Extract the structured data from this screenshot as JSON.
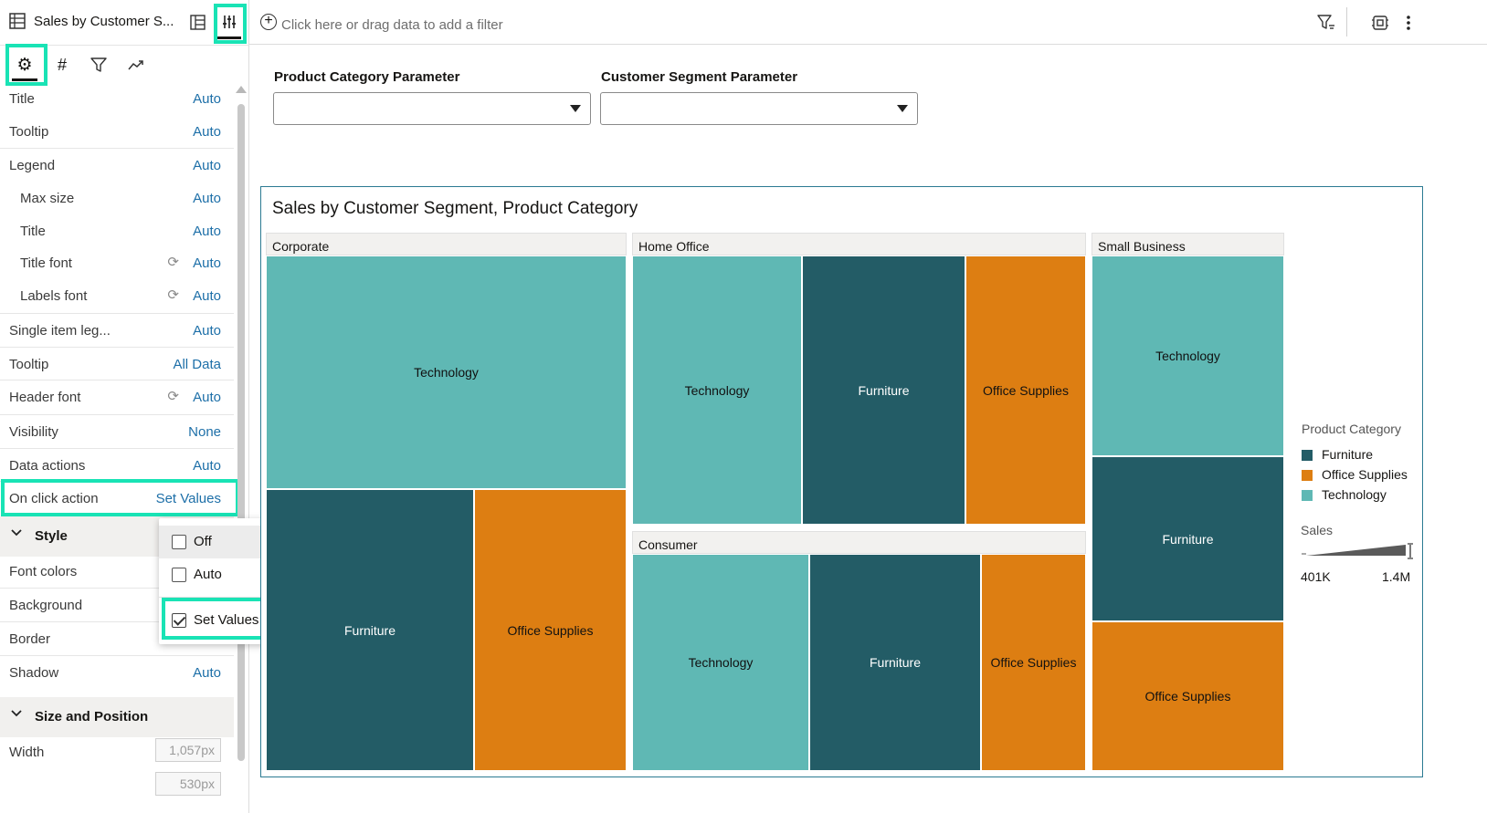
{
  "app": {
    "canvas_title": "Sales by Customer S..."
  },
  "filterbar": {
    "placeholder": "Click here or drag data to add a filter"
  },
  "properties": [
    {
      "label": "Title",
      "value": "Auto",
      "indent": false,
      "reset": false
    },
    {
      "label": "Tooltip",
      "value": "Auto",
      "indent": false,
      "reset": false
    },
    {
      "label": "Legend",
      "value": "Auto",
      "indent": false,
      "reset": false
    },
    {
      "label": "Max size",
      "value": "Auto",
      "indent": true,
      "reset": false
    },
    {
      "label": "Title",
      "value": "Auto",
      "indent": true,
      "reset": false
    },
    {
      "label": "Title font",
      "value": "Auto",
      "indent": true,
      "reset": true
    },
    {
      "label": "Labels font",
      "value": "Auto",
      "indent": true,
      "reset": true
    },
    {
      "label": "Single item leg...",
      "value": "Auto",
      "indent": false,
      "reset": false
    },
    {
      "label": "Tooltip",
      "value": "All Data",
      "indent": false,
      "reset": false
    },
    {
      "label": "Header font",
      "value": "Auto",
      "indent": false,
      "reset": true
    },
    {
      "label": "Visibility",
      "value": "None",
      "indent": false,
      "reset": false
    },
    {
      "label": "Data actions",
      "value": "Auto",
      "indent": false,
      "reset": false
    },
    {
      "label": "On click action",
      "value": "Set Values",
      "indent": false,
      "reset": false
    }
  ],
  "style_section": {
    "title": "Style",
    "rows": [
      {
        "label": "Font colors",
        "value": ""
      },
      {
        "label": "Background",
        "value": ""
      },
      {
        "label": "Border",
        "value": ""
      },
      {
        "label": "Shadow",
        "value": "Auto"
      }
    ]
  },
  "size_section": {
    "title": "Size and Position",
    "width_label": "Width",
    "width_value": "1,057px",
    "height_value": "530px"
  },
  "dropdown": {
    "options": [
      {
        "label": "Off",
        "checked": false
      },
      {
        "label": "Auto",
        "checked": false
      },
      {
        "label": "Set Values",
        "checked": true
      }
    ]
  },
  "parameters": [
    {
      "label": "Product Category Parameter",
      "value": ""
    },
    {
      "label": "Customer Segment Parameter",
      "value": ""
    }
  ],
  "viz": {
    "title": "Sales by Customer Segment, Product Category"
  },
  "colors": {
    "Furniture": "#235c66",
    "Office Supplies": "#dd7e12",
    "Technology": "#5fb8b4",
    "highlight": "#19e3b5",
    "link": "#1d6fa8"
  },
  "chart_data": {
    "type": "treemap",
    "title": "Sales by Customer Segment, Product Category",
    "groups": [
      {
        "name": "Corporate",
        "cells": [
          "Technology",
          "Furniture",
          "Office Supplies"
        ]
      },
      {
        "name": "Home Office",
        "cells": [
          "Technology",
          "Furniture",
          "Office Supplies"
        ]
      },
      {
        "name": "Consumer",
        "cells": [
          "Technology",
          "Furniture",
          "Office Supplies"
        ]
      },
      {
        "name": "Small Business",
        "cells": [
          "Technology",
          "Furniture",
          "Office Supplies"
        ]
      }
    ],
    "legend": {
      "color_title": "Product Category",
      "items": [
        "Furniture",
        "Office Supplies",
        "Technology"
      ],
      "size_title": "Sales",
      "size_min": "401K",
      "size_max": "1.4M"
    }
  }
}
